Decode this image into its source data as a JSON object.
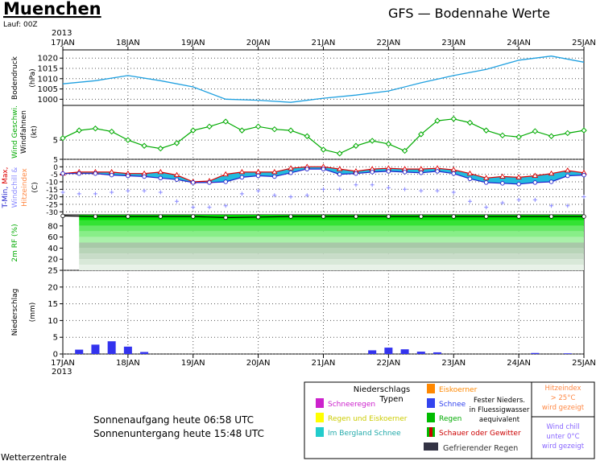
{
  "header": {
    "station": "Muenchen",
    "run": "Lauf: 00Z",
    "model_title": "GFS  —  Bodennahe Werte"
  },
  "x_axis": {
    "year": "2013",
    "dates": [
      "17JAN",
      "18JAN",
      "19JAN",
      "20JAN",
      "21JAN",
      "22JAN",
      "23JAN",
      "24JAN",
      "25JAN"
    ]
  },
  "footer": {
    "sunrise": "Sonnenaufgang heute 06:58 UTC",
    "sunset": "Sonnenuntergang heute 15:48 UTC",
    "source": "Wetterzentrale"
  },
  "legend": {
    "title1": "Niederschlags",
    "title2": "Typen",
    "items": [
      {
        "label": "Schneeregen",
        "color": "#cc22cc",
        "text_color": "#cc22cc"
      },
      {
        "label": "Regen und Eiskoerner",
        "color": "#ffff00",
        "text_color": "#cccc00"
      },
      {
        "label": "Im Bergland Schnee",
        "color": "#22cccc",
        "text_color": "#22aaaa"
      },
      {
        "label": "Eiskoerner",
        "color": "#ff8800",
        "text_color": "#ff8800"
      },
      {
        "label": "Schnee",
        "color": "#3344ee",
        "text_color": "#3344ee"
      },
      {
        "label": "Regen",
        "color": "#00bb00",
        "text_color": "#00aa00"
      },
      {
        "label": "Schauer oder Gewitter",
        "color": "#cc0000",
        "text_color": "#cc0000"
      },
      {
        "label": "Gefrierender Regen",
        "color": "#333344",
        "text_color": "#333333"
      }
    ],
    "fester_niederschlag": [
      "Fester Nieders.",
      "in Fluessigwasser",
      "aequivalent"
    ],
    "hitzeindex_note": [
      "Hitzeindex",
      "> 25°C",
      "wird gezeigt"
    ],
    "windchill_note": [
      "Wind chill",
      "unter 0°C",
      "wird gezeigt"
    ]
  },
  "chart_data": [
    {
      "type": "line",
      "panel": "pressure",
      "ylabel": "Bodendruck",
      "unit": "(hPa)",
      "yticks": [
        1000,
        1005,
        1010,
        1015,
        1020
      ],
      "ylim": [
        997,
        1024
      ],
      "x": [
        0,
        0.5,
        1,
        1.5,
        2,
        2.5,
        3,
        3.5,
        4,
        4.5,
        5,
        5.5,
        6,
        6.5,
        7,
        7.5,
        8
      ],
      "values": [
        1007.5,
        1009,
        1011.5,
        1009,
        1006,
        1000,
        999.5,
        998.5,
        1000.5,
        1002,
        1004,
        1008,
        1011.5,
        1014.5,
        1019,
        1021,
        1018
      ],
      "color": "#1fa0e0"
    },
    {
      "type": "line",
      "panel": "wind",
      "ylabel": "Wind Geschwi. Windfahnen",
      "unit": "(kt)",
      "yticks": [
        5
      ],
      "ylim": [
        0,
        14
      ],
      "x": [
        0,
        0.25,
        0.5,
        0.75,
        1,
        1.25,
        1.5,
        1.75,
        2,
        2.25,
        2.5,
        2.75,
        3,
        3.25,
        3.5,
        3.75,
        4,
        4.25,
        4.5,
        4.75,
        5,
        5.25,
        5.5,
        5.75,
        6,
        6.25,
        6.5,
        6.75,
        7,
        7.25,
        7.5,
        7.75,
        8
      ],
      "values": [
        5.5,
        7.5,
        8,
        7.2,
        5,
        3.5,
        2.8,
        4.2,
        7.5,
        8.5,
        9.8,
        7.5,
        8.5,
        7.8,
        7.5,
        6,
        2.5,
        1.5,
        3.5,
        4.8,
        4,
        2.2,
        6.5,
        10,
        10.5,
        9.5,
        7.5,
        6.2,
        5.8,
        7.3,
        6,
        6.8,
        7.5
      ],
      "color": "#00aa00"
    },
    {
      "type": "area",
      "panel": "temperature",
      "ylabel": "T-Min, Max, Windchill & Hitzeindex",
      "unit": "(C)",
      "yticks": [
        5,
        0,
        -5,
        -10,
        -15,
        -20,
        -25,
        -30
      ],
      "ylim": [
        -32,
        5
      ],
      "x": [
        0,
        0.25,
        0.5,
        0.75,
        1,
        1.25,
        1.5,
        1.75,
        2,
        2.25,
        2.5,
        2.75,
        3,
        3.25,
        3.5,
        3.75,
        4,
        4.25,
        4.5,
        4.75,
        5,
        5.25,
        5.5,
        5.75,
        6,
        6.25,
        6.5,
        6.75,
        7,
        7.25,
        7.5,
        7.75,
        8
      ],
      "tmax": [
        -4.5,
        -3.5,
        -3.5,
        -3.5,
        -4.5,
        -4.5,
        -3.5,
        -5.5,
        -10,
        -9.5,
        -5,
        -3.5,
        -3.5,
        -3.5,
        -1,
        0,
        0,
        -1.5,
        -3,
        -1.5,
        -1,
        -1.5,
        -1.5,
        -1,
        -2,
        -4.5,
        -7.5,
        -6.5,
        -7,
        -6,
        -4.5,
        -2.5,
        -4
      ],
      "tmin": [
        -4.5,
        -4.5,
        -4.5,
        -5.5,
        -6,
        -6.5,
        -7.5,
        -8.5,
        -10.5,
        -10.5,
        -10,
        -7,
        -6,
        -6.5,
        -4,
        -1.5,
        -1.5,
        -5,
        -4.5,
        -3.5,
        -3,
        -3.5,
        -4,
        -3,
        -4.5,
        -8,
        -10.5,
        -11,
        -11.5,
        -10.5,
        -10,
        -6,
        -5.5
      ],
      "windchill": [
        -17,
        -18,
        -18,
        -17,
        -16,
        -16,
        -17,
        -23,
        -27,
        -27,
        -26,
        -18,
        -16,
        -19,
        -20,
        -19,
        -15,
        -15,
        -12,
        -12,
        -14,
        -15,
        -16,
        -16,
        -17,
        -23,
        -27,
        -24,
        -22,
        -22,
        -26,
        -26,
        -20
      ],
      "colors": {
        "tmax": "#dd0000",
        "tmin": "#2222cc",
        "fill": "#22bbdd",
        "windchill": "#8888ff"
      }
    },
    {
      "type": "area",
      "panel": "humidity",
      "ylabel": "2m RF (%)",
      "yticks": [
        20,
        40,
        60,
        80
      ],
      "ylim": [
        0,
        100
      ],
      "x": [
        0,
        0.5,
        1,
        1.5,
        2,
        2.5,
        3,
        3.5,
        4,
        4.5,
        5,
        5.5,
        6,
        6.5,
        7,
        7.5,
        8
      ],
      "values": [
        98,
        97,
        97,
        97,
        97,
        95,
        96,
        97,
        97,
        97,
        97,
        97,
        97,
        97,
        97,
        97,
        97
      ],
      "color": "#00dd00"
    },
    {
      "type": "bar",
      "panel": "precipitation",
      "ylabel": "Niederschlag",
      "unit": "(mm)",
      "yticks": [
        0,
        5,
        10,
        15,
        20,
        25
      ],
      "ylim": [
        0,
        25
      ],
      "x": [
        0.25,
        0.5,
        0.75,
        1,
        1.25,
        4.75,
        5,
        5.25,
        5.5,
        5.75,
        7.25,
        7.75
      ],
      "values": [
        1.3,
        2.8,
        3.8,
        2.2,
        0.6,
        1.1,
        1.9,
        1.4,
        0.7,
        0.5,
        0.3,
        0.2
      ],
      "color": "#3333ee"
    }
  ]
}
